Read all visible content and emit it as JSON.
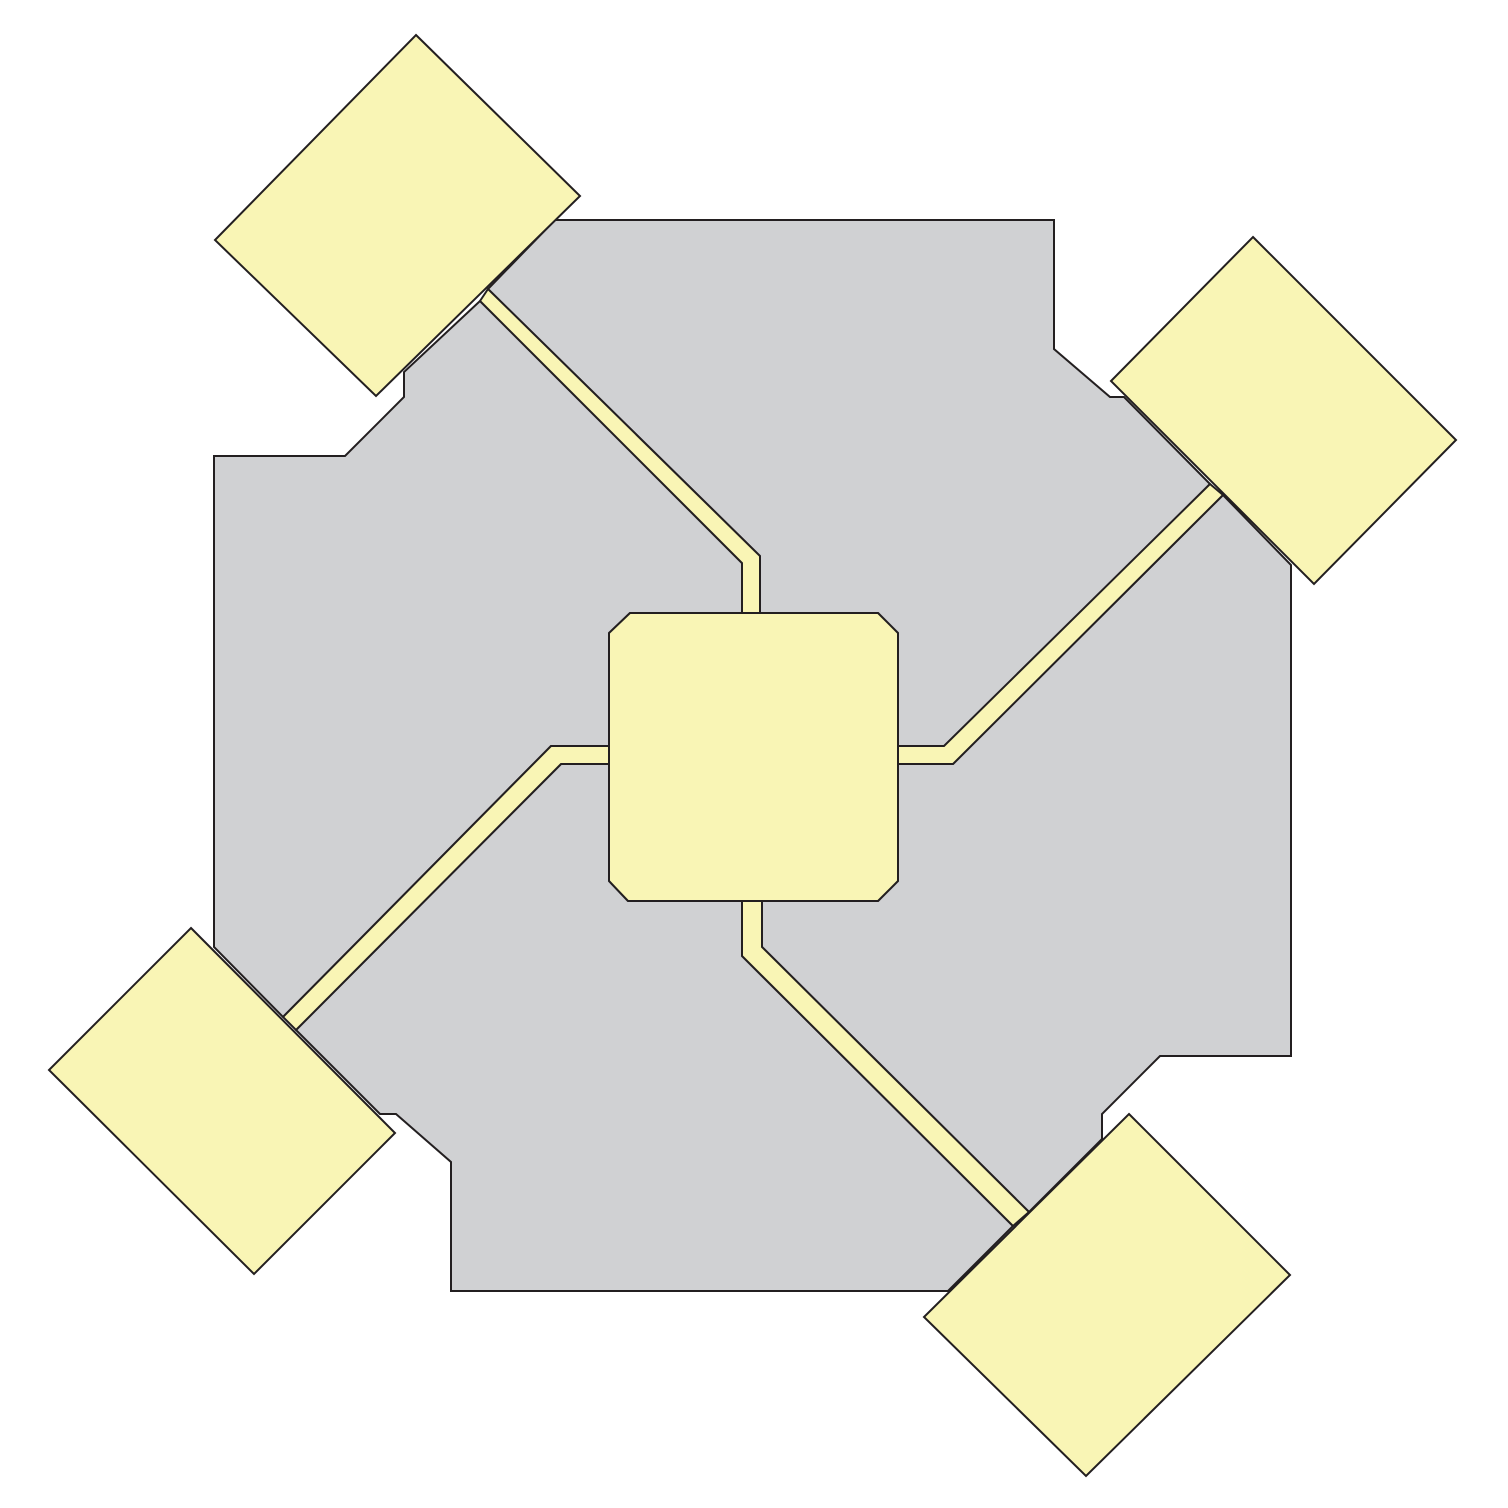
{
  "diagram": {
    "colors": {
      "background": "#ffffff",
      "electrode_fill": "#d0d1d3",
      "pad_fill": "#f9f5b5",
      "outline": "#231f20"
    },
    "components": {
      "electrodes": 4,
      "corner_pads": 4,
      "center_pad": 1,
      "traces": 4
    }
  }
}
